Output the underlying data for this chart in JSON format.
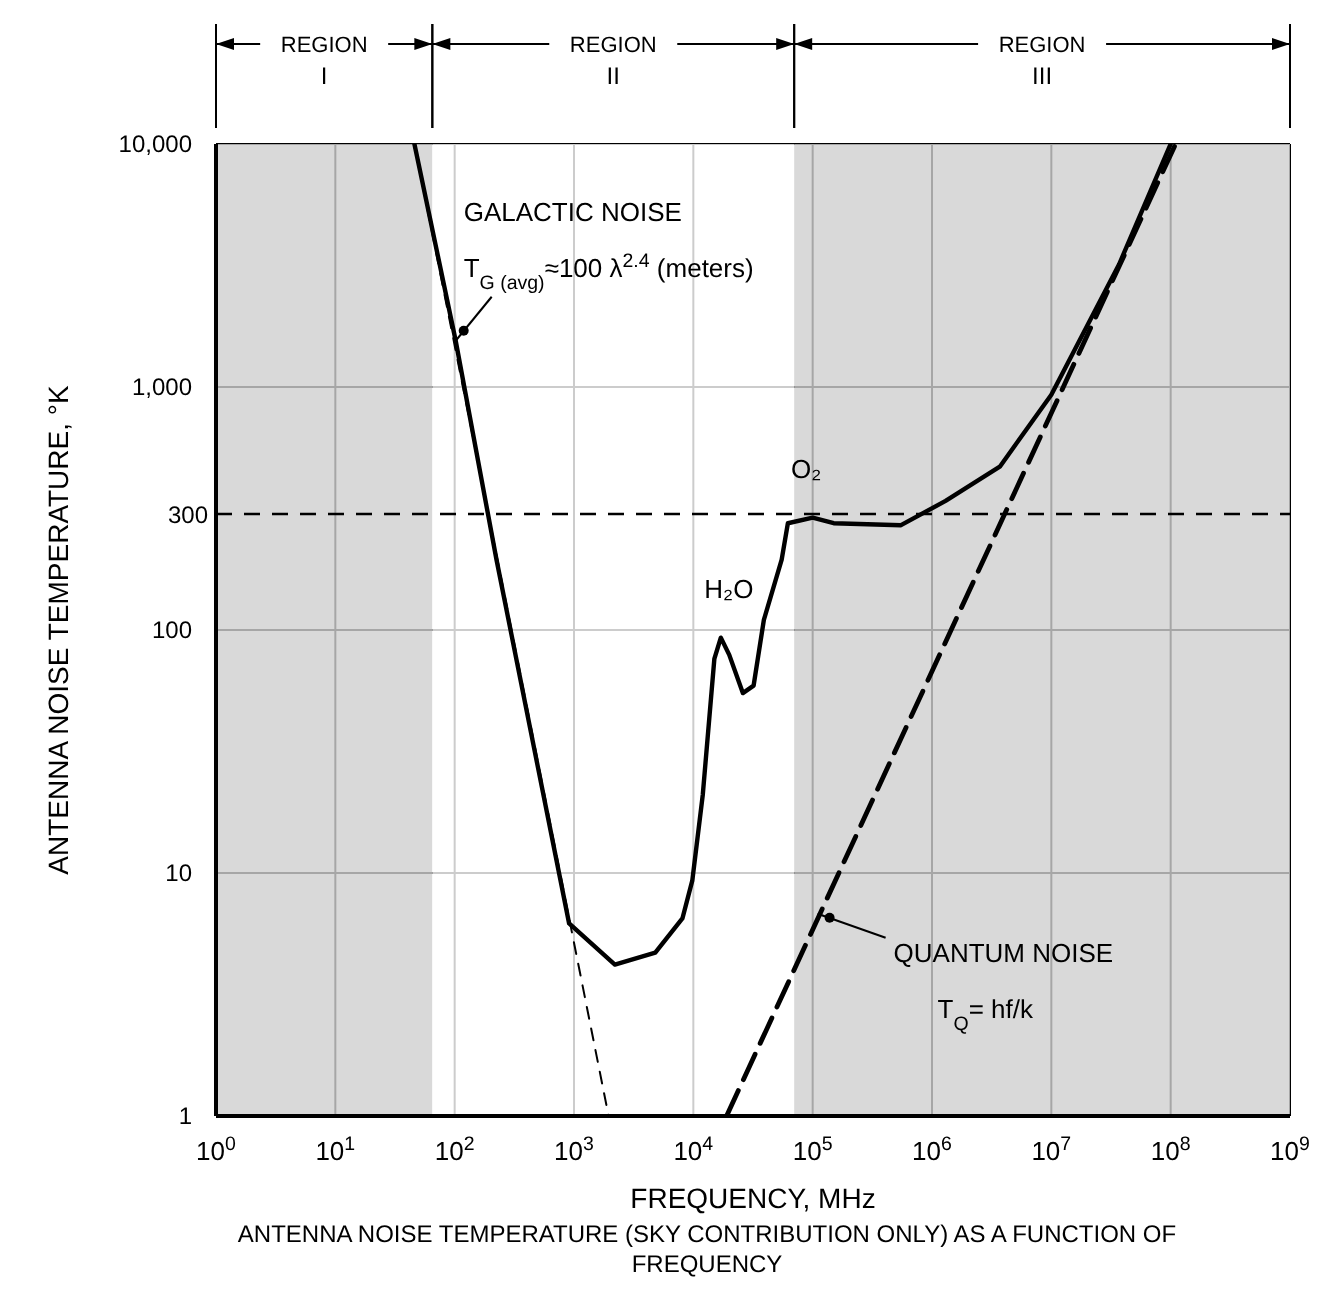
{
  "chart_data": {
    "type": "line",
    "xlabel": "FREQUENCY, MHz",
    "ylabel": "ANTENNA NOISE TEMPERATURE, °K",
    "log": "xy",
    "grid": true,
    "marker": "none",
    "xlim": [
      1,
      1000000000
    ],
    "xticks": [
      {
        "value": 1,
        "label": "10$^{0}$"
      },
      {
        "value": 10,
        "label": "10$^{1}$"
      },
      {
        "value": 100,
        "label": "10$^{2}$"
      },
      {
        "value": 1000,
        "label": "10$^{3}$"
      },
      {
        "value": 10000,
        "label": "10$^{4}$"
      },
      {
        "value": 100000,
        "label": "10$^{5}$"
      },
      {
        "value": 1000000,
        "label": "10$^{6}$"
      },
      {
        "value": 10000000,
        "label": "10$^{7}$"
      },
      {
        "value": 100000000,
        "label": "10$^{8}$"
      },
      {
        "value": 1000000000,
        "label": "10$^{9}$"
      }
    ],
    "ylim": [
      1,
      10000
    ],
    "yticks": [
      1,
      10,
      100,
      {
        "value": 1000,
        "label": "1,000"
      },
      {
        "value": 10000,
        "label": "10,000"
      }
    ],
    "series": [
      {
        "color": "#000000",
        "line_style": "solid",
        "x": [
          46,
          102,
          224,
          910,
          2200,
          4800,
          8100,
          9800,
          12000,
          15000,
          17000,
          20000,
          26000,
          32000,
          39000,
          55000,
          62000,
          100000,
          150000,
          550000,
          1300000,
          3700000,
          10000000,
          37000000,
          100000000
        ],
        "values": [
          10000,
          1550,
          195,
          6.2,
          4.2,
          4.7,
          6.5,
          9.3,
          21,
          76,
          93,
          79,
          55,
          59,
          110,
          195,
          275,
          290,
          275,
          270,
          340,
          470,
          930,
          3200,
          10000
        ]
      },
      {
        "color": "#000000",
        "line_style": "dashed",
        "x": [
          46,
          1950
        ],
        "values": [
          10000,
          1
        ]
      },
      {
        "color": "#000000",
        "line_style": "dashed",
        "x": [
          19000,
          110000000
        ],
        "values": [
          1,
          10000
        ]
      }
    ],
    "ref_lines": [
      {
        "axis": "y",
        "value": 300,
        "label": "300",
        "line_style": "dashed",
        "color": "#000000"
      }
    ],
    "bands": [
      {
        "axis": "x",
        "from": 1,
        "to": 65,
        "color": "#cfcfcf"
      },
      {
        "axis": "x",
        "from": 65,
        "to": 70000,
        "color": "#ffffff"
      },
      {
        "axis": "x",
        "from": 70000,
        "to": 1000000000,
        "color": "#cfcfcf"
      }
    ],
    "annotations": [
      "REGION I",
      "REGION II",
      "REGION III",
      {
        "text": "GALACTIC NOISE\nT$_{G (avg)}$≈100 λ$^{2.4}$ (meters)",
        "x": 102,
        "y": 1550
      },
      {
        "text": "H₂O",
        "x": 17000,
        "y": 93
      },
      {
        "text": "O₂",
        "x": 70000,
        "y": 300
      },
      {
        "text": "QUANTUM NOISE\nT$_{Q}$= hf/k",
        "x": 110000,
        "y": 6.8
      },
      "ANTENNA NOISE TEMPERATURE (SKY CONTRIBUTION ONLY) AS A FUNCTION OF FREQUENCY"
    ]
  }
}
